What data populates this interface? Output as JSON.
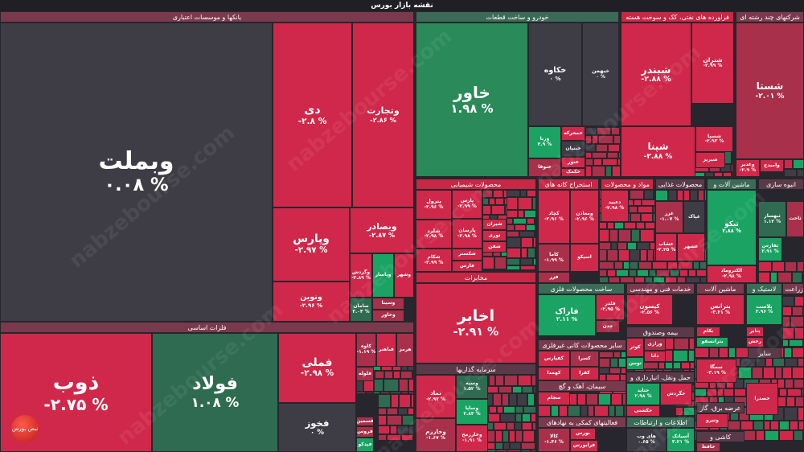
{
  "title": "نقشه بازار بورس",
  "watermark": "nabzebourse.com",
  "logo_text": "نبض بورس",
  "colors": {
    "strong_red": "#d0284a",
    "weak_red": "#a8304a",
    "neutral": "#3e3c44",
    "strong_green": "#1aa363",
    "weak_green": "#2e6b50"
  },
  "sectors": {
    "banks": "بانکها و موسسات اعتباری",
    "metals": "فلزات اساسی",
    "auto": "خودرو و ساخت قطعات",
    "oil": "فراورده های نفتی، کک و سوخت هسته",
    "multi": "شرکتهای چند رشته ای",
    "chem": "محصولات شیمیایی",
    "telecom": "مخابرات",
    "invest": "سرمایه گذاریها",
    "mining": "استخراج کانه های",
    "materials": "مواد و محصولات",
    "food": "محصولات غذایی",
    "machinery": "ماشین آلات و",
    "construction": "انبوه سازی",
    "metalprod": "ساخت محصولات فلزی",
    "nonmetal": "سایر محصولات کانی غیرفلزی",
    "cement": "سیمان، آهک و گچ",
    "financial": "فعالیتهای کمکی به نهادهای",
    "engineering": "خدمات فنی و مهندسی",
    "insurance": "بیمه وصندوق",
    "transport": "حمل ونقل، انبارداری و",
    "it": "اطلاعات و ارتباطات",
    "machinery2": "ماشین آلات",
    "rubber": "لاستیک و",
    "agri": "زراعت و",
    "other": "سایر",
    "utility": "عرضه برق، گاز",
    "tiles": "کاشی و"
  },
  "stocks": {
    "vbmellat": {
      "symbol": "وبملت",
      "change": "۰.۰۸ %"
    },
    "dey": {
      "symbol": "دی",
      "change": "-۲.۸ %"
    },
    "vtejarat": {
      "symbol": "وتجارت",
      "change": "-۲.۸۶ %"
    },
    "vpars": {
      "symbol": "وپارس",
      "change": "-۲.۹۷ %"
    },
    "vbsader": {
      "symbol": "وبصادر",
      "change": "-۲.۸۷ %"
    },
    "vnovin": {
      "symbol": "ونوین",
      "change": "-۲.۹۶ %"
    },
    "vgardesh": {
      "symbol": "وگردش",
      "change": "-۲.۸۹ %"
    },
    "vpasar": {
      "symbol": "وپاسار",
      "change": ""
    },
    "vshahr": {
      "symbol": "وشهر",
      "change": ""
    },
    "saman": {
      "symbol": "سامان",
      "change": "۳.۰۴ %"
    },
    "vsina": {
      "symbol": "وسینا",
      "change": ""
    },
    "vkhavar": {
      "symbol": "وخاور",
      "change": ""
    },
    "zob": {
      "symbol": "ذوب",
      "change": "-۲.۷۵ %"
    },
    "foolad": {
      "symbol": "فولاد",
      "change": "۱.۰۸ %"
    },
    "fameli": {
      "symbol": "فملی",
      "change": "-۲.۹۸ %"
    },
    "fakhooz": {
      "symbol": "فخوز",
      "change": "۰ %"
    },
    "kaveh": {
      "symbol": "کاوه",
      "change": "-۱.۱۹ %"
    },
    "fbahonar": {
      "symbol": "فباهنر",
      "change": ""
    },
    "hormoz": {
      "symbol": "هرمز",
      "change": ""
    },
    "folooleh": {
      "symbol": "فلوله",
      "change": ""
    },
    "fsemin": {
      "symbol": "فسمین",
      "change": ""
    },
    "froos": {
      "symbol": "فروس",
      "change": ""
    },
    "fpadko": {
      "symbol": "فپدکو",
      "change": ""
    },
    "khavar": {
      "symbol": "خاور",
      "change": "۱.۹۸ %"
    },
    "khkaveh": {
      "symbol": "خکاوه",
      "change": "۰ %"
    },
    "khbahman": {
      "symbol": "خبهمن",
      "change": "۰ %"
    },
    "varna": {
      "symbol": "ورنا",
      "change": "۲.۹ %"
    },
    "khmoharreke": {
      "symbol": "خمحرکه",
      "change": ""
    },
    "khbonyan": {
      "symbol": "خبنیان",
      "change": ""
    },
    "khnoor": {
      "symbol": "خنور",
      "change": ""
    },
    "khkomak": {
      "symbol": "خکمک",
      "change": ""
    },
    "khtooga": {
      "symbol": "ختوقا",
      "change": ""
    },
    "shabandar": {
      "symbol": "شبندر",
      "change": "-۲.۸۸ %"
    },
    "shetran": {
      "symbol": "شتران",
      "change": "-۲.۹۹ %"
    },
    "shepna": {
      "symbol": "شپنا",
      "change": "-۲.۸۸ %"
    },
    "shespa": {
      "symbol": "شسپا",
      "change": "-۲.۹۳ %"
    },
    "shabriz": {
      "symbol": "شبریز",
      "change": ""
    },
    "shasta": {
      "symbol": "شستا",
      "change": "-۲.۰۱ %"
    },
    "vghadir": {
      "symbol": "وغدیر",
      "change": "-۲.۹ %"
    },
    "vomidh": {
      "symbol": "وامیدح",
      "change": ""
    },
    "petrol": {
      "symbol": "پترول",
      "change": "-۲.۹۶ %"
    },
    "pars": {
      "symbol": "پارس",
      "change": "-۲.۹۹ %"
    },
    "shelard": {
      "symbol": "شلرد",
      "change": "-۲.۹۸ %"
    },
    "parsan": {
      "symbol": "پارسان",
      "change": "-۲.۹۸ %"
    },
    "shekam": {
      "symbol": "شکام",
      "change": "-۲.۹۹ %"
    },
    "shekastar": {
      "symbol": "شکستر",
      "change": ""
    },
    "fars": {
      "symbol": "فارس",
      "change": ""
    },
    "shiran": {
      "symbol": "شیران",
      "change": ""
    },
    "noori": {
      "symbol": "نوری",
      "change": ""
    },
    "shafan": {
      "symbol": "شفن",
      "change": ""
    },
    "akhaber": {
      "symbol": "اخابر",
      "change": "-۲.۹۱ %"
    },
    "tamad": {
      "symbol": "تماد",
      "change": "-۲.۹۷ %"
    },
    "vsepah": {
      "symbol": "وسپه",
      "change": "۱.۵۲ %"
    },
    "vsapa": {
      "symbol": "وساپا",
      "change": "۲.۸۳ %"
    },
    "vkharazm": {
      "symbol": "وخارزم",
      "change": "-۱.۶۷ %"
    },
    "vkharazmh": {
      "symbol": "وخارزمح",
      "change": "-۱.۹۱ %"
    },
    "kechad": {
      "symbol": "کچاد",
      "change": "-۲.۹۶ %"
    },
    "vmaaden": {
      "symbol": "ومعادن",
      "change": "-۲.۹۶ %"
    },
    "kama": {
      "symbol": "کاما",
      "change": "-۱.۹۹ %"
    },
    "asiko": {
      "symbol": "اسیکو",
      "change": ""
    },
    "fazar": {
      "symbol": "فزر",
      "change": ""
    },
    "daabid": {
      "symbol": "دعبید",
      "change": "-۲.۹۸ %"
    },
    "ghazar": {
      "symbol": "غزر",
      "change": "-۱.۰۷ %"
    },
    "ghpak": {
      "symbol": "غپاک",
      "change": ""
    },
    "ghshab": {
      "symbol": "غشاب",
      "change": "-۲.۲۵ %"
    },
    "ghshahr": {
      "symbol": "غشهر",
      "change": ""
    },
    "tiko": {
      "symbol": "تیکو",
      "change": "۲.۸۸ %"
    },
    "electromad": {
      "symbol": "الکتروماد",
      "change": "-۲.۹۸ %"
    },
    "sbahsaz": {
      "symbol": "ثبهساز",
      "change": "۱.۱۲ %"
    },
    "sakht": {
      "symbol": "ثاخت",
      "change": ""
    },
    "sfars": {
      "symbol": "ثفارس",
      "change": "۲.۹۱ %"
    },
    "farak": {
      "symbol": "فاراک",
      "change": "۲.۱۱ %"
    },
    "felezr": {
      "symbol": "فلذر",
      "change": "-۲.۹۵ %"
    },
    "chadan": {
      "symbol": "چدن",
      "change": ""
    },
    "kafpars": {
      "symbol": "کفپارس",
      "change": ""
    },
    "kesra": {
      "symbol": "کسرا",
      "change": ""
    },
    "kahamda": {
      "symbol": "کهمدا",
      "change": ""
    },
    "kafra": {
      "symbol": "کفرا",
      "change": ""
    },
    "sejam": {
      "symbol": "سجام",
      "change": ""
    },
    "kala": {
      "symbol": "کالا",
      "change": "-۱.۴۶ %"
    },
    "bourse": {
      "symbol": "بورس",
      "change": ""
    },
    "farabourse": {
      "symbol": "فرابورس",
      "change": ""
    },
    "kayson": {
      "symbol": "کیسون",
      "change": "-۲.۵۶ %"
    },
    "kowsar": {
      "symbol": "کوثر",
      "change": ""
    },
    "verazi": {
      "symbol": "ورازی",
      "change": ""
    },
    "dana": {
      "symbol": "دانا",
      "change": ""
    },
    "tonin": {
      "symbol": "تونین",
      "change": ""
    },
    "hatayd": {
      "symbol": "حتاید",
      "change": "۲.۹۸ %"
    },
    "hkeshti": {
      "symbol": "حکشتی",
      "change": ""
    },
    "hgardesh": {
      "symbol": "حگردش",
      "change": ""
    },
    "hayweb": {
      "symbol": "های وب",
      "change": "۰.۶۵ %"
    },
    "asiatech": {
      "symbol": "آسیاتک",
      "change": "۳.۲۱ %"
    },
    "btrans": {
      "symbol": "بترانس",
      "change": "-۳.۲۱ %"
    },
    "bekam": {
      "symbol": "بکام",
      "change": ""
    },
    "btransfo": {
      "symbol": "بترانسفو",
      "change": ""
    },
    "plast": {
      "symbol": "پلاست",
      "change": "۲.۹۶ %"
    },
    "ptayer": {
      "symbol": "پتایر",
      "change": ""
    },
    "rakhsh": {
      "symbol": "رخش",
      "change": ""
    },
    "semga": {
      "symbol": "سمگا",
      "change": "-۳.۱۹ %"
    },
    "khsadra": {
      "symbol": "خصدرا",
      "change": ""
    },
    "vtiro": {
      "symbol": "وتیرو",
      "change": ""
    },
    "hafez": {
      "symbol": "حافظ",
      "change": ""
    }
  }
}
